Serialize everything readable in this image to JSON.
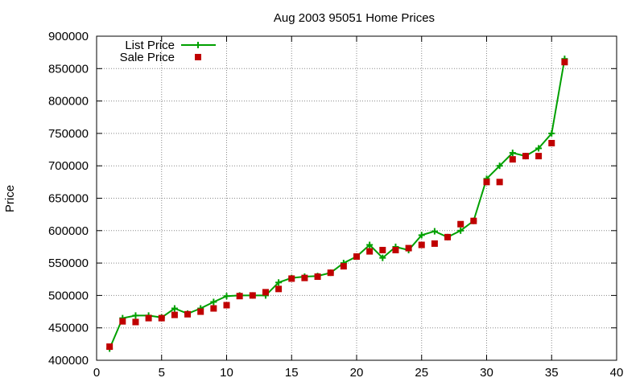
{
  "chart_data": {
    "type": "line",
    "title": "Aug 2003 95051 Home Prices",
    "xlabel": "",
    "ylabel": "Price",
    "xlim": [
      0,
      40
    ],
    "ylim": [
      400000,
      900000
    ],
    "x_ticks": [
      0,
      5,
      10,
      15,
      20,
      25,
      30,
      35,
      40
    ],
    "y_ticks": [
      400000,
      450000,
      500000,
      550000,
      600000,
      650000,
      700000,
      750000,
      800000,
      850000,
      900000
    ],
    "grid": true,
    "legend_position": "top-left",
    "series": [
      {
        "name": "List Price",
        "style": "line+cross",
        "color": "#00a000",
        "x": [
          1,
          2,
          3,
          4,
          5,
          6,
          7,
          8,
          9,
          10,
          11,
          12,
          13,
          14,
          15,
          16,
          17,
          18,
          19,
          20,
          21,
          22,
          23,
          24,
          25,
          26,
          27,
          28,
          29,
          30,
          31,
          32,
          33,
          34,
          35,
          36
        ],
        "y": [
          418000,
          465000,
          469000,
          469000,
          466000,
          480000,
          472000,
          480000,
          490000,
          499000,
          500000,
          500000,
          500000,
          520000,
          527000,
          529000,
          530000,
          535000,
          550000,
          560000,
          578000,
          558000,
          575000,
          570000,
          593000,
          599000,
          590000,
          600000,
          615000,
          680000,
          700000,
          720000,
          715000,
          727000,
          750000,
          865000
        ]
      },
      {
        "name": "Sale Price",
        "style": "square",
        "color": "#c00000",
        "x": [
          1,
          2,
          3,
          4,
          5,
          6,
          7,
          8,
          9,
          10,
          11,
          12,
          13,
          14,
          15,
          16,
          17,
          18,
          19,
          20,
          21,
          22,
          23,
          24,
          25,
          26,
          27,
          28,
          29,
          30,
          31,
          32,
          33,
          34,
          35,
          36
        ],
        "y": [
          421000,
          460000,
          459000,
          465000,
          465000,
          470000,
          471000,
          475000,
          480000,
          485000,
          499000,
          500000,
          505000,
          510000,
          526000,
          527000,
          529000,
          535000,
          545000,
          560000,
          568000,
          570000,
          570000,
          573000,
          578000,
          580000,
          590000,
          610000,
          615000,
          675000,
          675000,
          710000,
          715000,
          715000,
          735000,
          860000
        ]
      }
    ]
  }
}
